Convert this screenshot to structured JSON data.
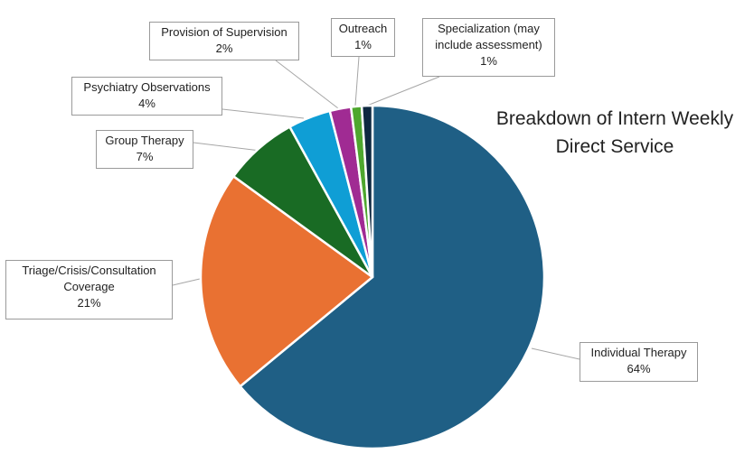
{
  "chart_data": {
    "type": "pie",
    "title": "Breakdown of Intern Weekly Direct Service",
    "slices": [
      {
        "label": "Individual Therapy",
        "value": 64,
        "pct_label": "64%",
        "color": "#1f5f85"
      },
      {
        "label": "Triage/Crisis/Consultation Coverage",
        "value": 21,
        "pct_label": "21%",
        "color": "#e97132"
      },
      {
        "label": "Group Therapy",
        "value": 7,
        "pct_label": "7%",
        "color": "#196b24"
      },
      {
        "label": "Psychiatry Observations",
        "value": 4,
        "pct_label": "4%",
        "color": "#0f9ed5"
      },
      {
        "label": "Provision of Supervision",
        "value": 2,
        "pct_label": "2%",
        "color": "#a02b93"
      },
      {
        "label": "Outreach",
        "value": 1,
        "pct_label": "1%",
        "color": "#4ea72e"
      },
      {
        "label": "Specialization (may include assessment)",
        "value": 1,
        "pct_label": "1%",
        "color": "#0e2841"
      }
    ]
  }
}
